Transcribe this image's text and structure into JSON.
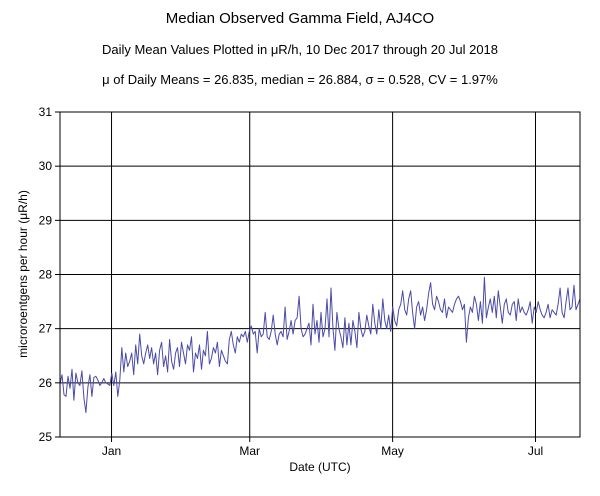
{
  "header": {
    "title": "Median Observed Gamma Field, AJ4CO",
    "subtitle": "Daily Mean Values Plotted in μR/h, 10 Dec 2017 through 20 Jul 2018",
    "stats": "μ of Daily Means = 26.835,   median = 26.884,   σ = 0.528,   CV = 1.97%"
  },
  "chart_data": {
    "type": "line",
    "title": "Median Observed Gamma Field, AJ4CO",
    "subtitle": "Daily Mean Values Plotted in μR/h, 10 Dec 2017 through 20 Jul 2018",
    "xlabel": "Date (UTC)",
    "ylabel": "microroentgens per hour (μR/h)",
    "xlim": [
      "2017-12-10",
      "2018-07-20"
    ],
    "ylim": [
      25,
      31
    ],
    "yticks": [
      25,
      26,
      27,
      28,
      29,
      30,
      31
    ],
    "xticks": [
      {
        "date": "2018-01-01",
        "label": "Jan"
      },
      {
        "date": "2018-03-01",
        "label": "Mar"
      },
      {
        "date": "2018-05-01",
        "label": "May"
      },
      {
        "date": "2018-07-01",
        "label": "Jul"
      }
    ],
    "grid": true,
    "line_color": "#4b4ba8",
    "series": [
      {
        "values": [
          25.98,
          26.15,
          25.78,
          25.75,
          26.12,
          25.9,
          26.25,
          25.68,
          26.18,
          26.0,
          25.95,
          26.22,
          25.72,
          25.45,
          25.92,
          26.15,
          25.75,
          26.1,
          26.12,
          26.05,
          25.95,
          26.0,
          26.08,
          26.0,
          25.98,
          25.95,
          26.18,
          25.95,
          26.2,
          25.75,
          26.05,
          26.65,
          26.2,
          26.55,
          26.3,
          26.4,
          26.55,
          26.15,
          26.7,
          26.35,
          26.9,
          26.5,
          26.35,
          26.55,
          26.7,
          26.45,
          26.65,
          26.35,
          26.55,
          26.15,
          26.6,
          26.75,
          26.3,
          26.5,
          26.2,
          26.8,
          26.4,
          26.25,
          26.55,
          26.65,
          26.3,
          26.75,
          26.55,
          26.35,
          26.7,
          26.6,
          26.85,
          26.2,
          26.55,
          26.45,
          26.7,
          26.25,
          26.6,
          26.5,
          26.95,
          26.35,
          26.45,
          26.65,
          26.55,
          26.75,
          26.3,
          26.6,
          26.5,
          26.4,
          26.35,
          26.8,
          26.95,
          26.7,
          26.55,
          26.85,
          26.75,
          26.9,
          26.85,
          26.95,
          26.75,
          26.95,
          27.05,
          26.9,
          26.95,
          26.55,
          27.0,
          26.85,
          26.9,
          27.3,
          26.85,
          26.8,
          26.95,
          27.25,
          26.9,
          26.7,
          26.9,
          26.95,
          26.85,
          27.4,
          26.8,
          26.95,
          27.15,
          26.9,
          27.15,
          27.2,
          27.6,
          27.0,
          26.85,
          26.9,
          27.0,
          27.1,
          26.7,
          27.45,
          26.9,
          27.15,
          26.75,
          27.3,
          26.85,
          27.0,
          27.55,
          26.85,
          27.75,
          27.0,
          26.6,
          27.3,
          27.0,
          26.85,
          26.65,
          27.2,
          26.7,
          27.1,
          26.7,
          27.15,
          26.95,
          26.65,
          27.3,
          27.0,
          26.85,
          26.95,
          27.25,
          27.05,
          26.9,
          27.45,
          27.1,
          26.9,
          27.35,
          27.0,
          27.55,
          27.15,
          27.0,
          27.25,
          26.95,
          27.4,
          27.15,
          27.05,
          27.35,
          27.45,
          27.7,
          27.35,
          27.25,
          27.55,
          27.7,
          27.3,
          27.0,
          27.4,
          27.5,
          27.25,
          27.4,
          27.15,
          27.35,
          27.65,
          27.85,
          27.45,
          27.35,
          27.6,
          27.5,
          27.35,
          27.3,
          27.55,
          27.2,
          27.4,
          27.35,
          27.3,
          27.45,
          27.55,
          27.6,
          27.5,
          27.35,
          27.45,
          26.75,
          27.2,
          27.4,
          27.3,
          27.6,
          27.45,
          27.15,
          27.5,
          27.1,
          27.95,
          27.2,
          27.4,
          27.55,
          27.3,
          27.6,
          27.2,
          27.7,
          27.4,
          27.1,
          27.45,
          27.55,
          27.3,
          27.25,
          27.45,
          27.5,
          27.15,
          27.55,
          27.3,
          27.4,
          27.3,
          27.25,
          27.35,
          27.5,
          27.1,
          27.4,
          27.3,
          27.5,
          27.35,
          27.25,
          27.2,
          27.3,
          27.45,
          27.2,
          27.35,
          27.3,
          27.25,
          27.45,
          27.75,
          27.3,
          27.2,
          27.5,
          27.75,
          27.35,
          27.4,
          27.8,
          27.35,
          27.45,
          27.55
        ]
      }
    ],
    "x_start": "2017-12-10",
    "x_end": "2018-07-20"
  }
}
